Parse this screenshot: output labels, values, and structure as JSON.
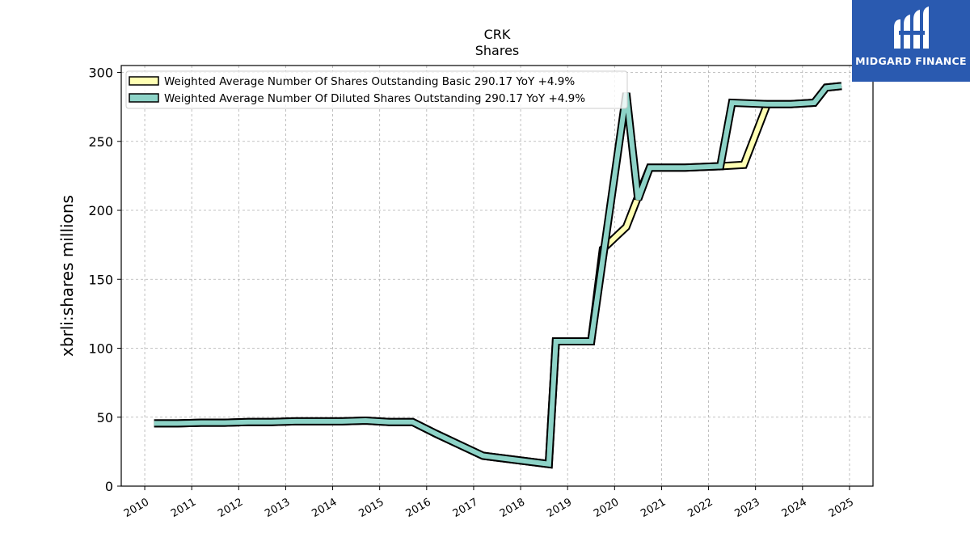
{
  "chart_data": {
    "type": "line",
    "title": "CRK",
    "subtitle": "Shares",
    "ylabel": "xbrli:shares millions",
    "xlabel": "",
    "xlim": [
      2009.5,
      2025.5
    ],
    "ylim": [
      0,
      305
    ],
    "yticks": [
      0,
      50,
      100,
      150,
      200,
      250,
      300
    ],
    "xticks": [
      "2010",
      "2011",
      "2012",
      "2013",
      "2014",
      "2015",
      "2016",
      "2017",
      "2018",
      "2019",
      "2020",
      "2021",
      "2022",
      "2023",
      "2024",
      "2025"
    ],
    "grid": true,
    "legend_position": "top-left",
    "series": [
      {
        "name": "Weighted Average Number Of Shares Outstanding Basic  290.17 YoY +4.9%",
        "color": "#ffffb3",
        "points": [
          [
            2010.2,
            45.5
          ],
          [
            2010.7,
            45.5
          ],
          [
            2011.2,
            46
          ],
          [
            2011.7,
            46
          ],
          [
            2012.2,
            46.5
          ],
          [
            2012.7,
            46.5
          ],
          [
            2013.2,
            47
          ],
          [
            2013.7,
            47
          ],
          [
            2014.2,
            47
          ],
          [
            2014.7,
            47.5
          ],
          [
            2015.2,
            46.5
          ],
          [
            2015.7,
            46.5
          ],
          [
            2016.2,
            38
          ],
          [
            2016.7,
            30
          ],
          [
            2017.2,
            22
          ],
          [
            2018.6,
            16
          ],
          [
            2018.75,
            105
          ],
          [
            2019.2,
            105
          ],
          [
            2019.5,
            105
          ],
          [
            2019.75,
            172
          ],
          [
            2020.25,
            188
          ],
          [
            2020.5,
            210
          ],
          [
            2020.75,
            231
          ],
          [
            2021.5,
            231
          ],
          [
            2022.25,
            232
          ],
          [
            2022.75,
            233
          ],
          [
            2023.25,
            277
          ],
          [
            2023.75,
            277
          ],
          [
            2024.25,
            278
          ],
          [
            2024.5,
            289
          ],
          [
            2024.83,
            290.17
          ]
        ]
      },
      {
        "name": "Weighted Average Number Of Diluted Shares Outstanding  290.17 YoY +4.9%",
        "color": "#8dd3c7",
        "points": [
          [
            2010.2,
            45.5
          ],
          [
            2010.7,
            45.5
          ],
          [
            2011.2,
            46
          ],
          [
            2011.7,
            46
          ],
          [
            2012.2,
            46.5
          ],
          [
            2012.7,
            46.5
          ],
          [
            2013.2,
            47
          ],
          [
            2013.7,
            47
          ],
          [
            2014.2,
            47
          ],
          [
            2014.7,
            47.5
          ],
          [
            2015.2,
            46.5
          ],
          [
            2015.7,
            46.5
          ],
          [
            2016.2,
            38
          ],
          [
            2016.7,
            30
          ],
          [
            2017.2,
            22
          ],
          [
            2018.6,
            16
          ],
          [
            2018.75,
            105
          ],
          [
            2019.2,
            105
          ],
          [
            2019.5,
            105
          ],
          [
            2020.25,
            285
          ],
          [
            2020.5,
            208
          ],
          [
            2020.75,
            231
          ],
          [
            2021.5,
            231
          ],
          [
            2022.25,
            232
          ],
          [
            2022.5,
            278
          ],
          [
            2023.25,
            277
          ],
          [
            2023.75,
            277
          ],
          [
            2024.25,
            278
          ],
          [
            2024.5,
            289
          ],
          [
            2024.83,
            290.17
          ]
        ]
      }
    ]
  },
  "logo": {
    "brand": "MIDGARD FINANCE",
    "background": "#2a5ab0"
  }
}
